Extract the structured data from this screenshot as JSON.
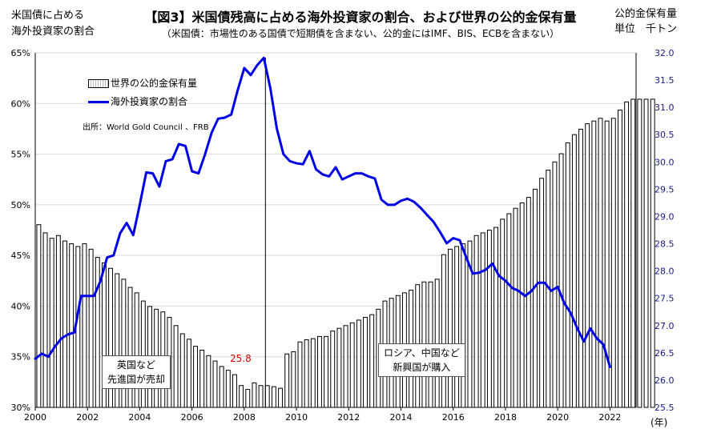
{
  "chart_data": {
    "type": "bar+line",
    "title": "【図3】米国債残高に占める海外投資家の割合、および世界の公的金保有量",
    "subtitle": "（米国債：市場性のある国債で短期債を含まない、公的金にはIMF、BIS、ECBを含まない）",
    "left_axis_title": [
      "米国債に占める",
      "海外投資家の割合"
    ],
    "right_axis_title": [
      "公的金保有量",
      "単位　千トン"
    ],
    "x_unit": "(年)",
    "x_ticks": [
      "2000",
      "2002",
      "2004",
      "2006",
      "2008",
      "2010",
      "2012",
      "2014",
      "2016",
      "2018",
      "2020",
      "2022"
    ],
    "y_left_ticks": [
      "30%",
      "35%",
      "40%",
      "45%",
      "50%",
      "55%",
      "60%",
      "65%"
    ],
    "y_left_range": [
      30,
      65
    ],
    "y_right_ticks": [
      "25.5",
      "26.0",
      "26.5",
      "27.0",
      "27.5",
      "28.0",
      "28.5",
      "29.0",
      "29.5",
      "30.0",
      "30.5",
      "31.0",
      "31.5",
      "32.0"
    ],
    "y_right_range": [
      25.5,
      32.0
    ],
    "x_range": [
      2000,
      2023
    ],
    "source": "出所：World Gold Council 、FRB",
    "legend_bar": "世界の公的金保有量",
    "legend_line": "海外投資家の割合",
    "annotation_left": [
      "英国など",
      "先進国が売却"
    ],
    "annotation_right": [
      "ロシア、中国など",
      "新興国が購入"
    ],
    "peak_label": "25.8",
    "gold_series": {
      "name": "世界の公的金保有量",
      "start": 2000.0,
      "step": 0.25,
      "values": [
        28.85,
        28.7,
        28.6,
        28.65,
        28.55,
        28.5,
        28.45,
        28.5,
        28.4,
        28.25,
        28.15,
        28.05,
        27.95,
        27.85,
        27.7,
        27.6,
        27.45,
        27.35,
        27.3,
        27.25,
        27.15,
        27.0,
        26.85,
        26.75,
        26.62,
        26.55,
        26.45,
        26.35,
        26.25,
        26.18,
        26.1,
        25.9,
        25.83,
        25.95,
        25.9,
        25.9,
        25.88,
        25.85,
        26.48,
        26.52,
        26.7,
        26.74,
        26.76,
        26.8,
        26.8,
        26.9,
        26.95,
        27.0,
        27.05,
        27.1,
        27.15,
        27.2,
        27.3,
        27.45,
        27.5,
        27.55,
        27.6,
        27.65,
        27.75,
        27.8,
        27.8,
        27.85,
        28.3,
        28.4,
        28.45,
        28.5,
        28.55,
        28.65,
        28.7,
        28.75,
        28.8,
        28.95,
        29.05,
        29.15,
        29.25,
        29.35,
        29.5,
        29.7,
        29.85,
        30.0,
        30.15,
        30.35,
        30.5,
        30.6,
        30.7,
        30.75,
        30.8,
        30.75,
        30.8,
        30.95,
        31.1,
        31.15,
        31.15,
        31.15,
        31.15
      ]
    },
    "share_series": {
      "name": "海外投資家の割合",
      "points": [
        [
          2000.0,
          34.8
        ],
        [
          2000.25,
          35.3
        ],
        [
          2000.5,
          35.0
        ],
        [
          2000.75,
          36.0
        ],
        [
          2001.0,
          36.8
        ],
        [
          2001.25,
          37.2
        ],
        [
          2001.5,
          37.4
        ],
        [
          2001.75,
          41.0
        ],
        [
          2002.0,
          41.0
        ],
        [
          2002.25,
          41.0
        ],
        [
          2002.5,
          42.5
        ],
        [
          2002.75,
          44.8
        ],
        [
          2003.0,
          45.0
        ],
        [
          2003.25,
          47.2
        ],
        [
          2003.5,
          48.2
        ],
        [
          2003.75,
          47.0
        ],
        [
          2004.0,
          50.0
        ],
        [
          2004.25,
          53.2
        ],
        [
          2004.5,
          53.1
        ],
        [
          2004.75,
          51.8
        ],
        [
          2005.0,
          54.3
        ],
        [
          2005.25,
          54.5
        ],
        [
          2005.5,
          56.0
        ],
        [
          2005.75,
          55.8
        ],
        [
          2006.0,
          53.3
        ],
        [
          2006.25,
          53.1
        ],
        [
          2006.5,
          55.0
        ],
        [
          2006.75,
          57.1
        ],
        [
          2007.0,
          58.5
        ],
        [
          2007.25,
          58.6
        ],
        [
          2007.5,
          58.9
        ],
        [
          2007.75,
          61.3
        ],
        [
          2008.0,
          63.5
        ],
        [
          2008.25,
          62.8
        ],
        [
          2008.5,
          63.8
        ],
        [
          2008.75,
          64.5
        ],
        [
          2009.0,
          61.5
        ],
        [
          2009.25,
          57.5
        ],
        [
          2009.5,
          55.0
        ],
        [
          2009.75,
          54.3
        ],
        [
          2010.0,
          54.1
        ],
        [
          2010.25,
          54.0
        ],
        [
          2010.5,
          55.3
        ],
        [
          2010.75,
          53.5
        ],
        [
          2011.0,
          53.0
        ],
        [
          2011.25,
          52.8
        ],
        [
          2011.5,
          53.7
        ],
        [
          2011.75,
          52.5
        ],
        [
          2012.0,
          52.8
        ],
        [
          2012.25,
          53.1
        ],
        [
          2012.5,
          53.1
        ],
        [
          2012.75,
          52.8
        ],
        [
          2013.0,
          52.6
        ],
        [
          2013.25,
          50.5
        ],
        [
          2013.5,
          50.0
        ],
        [
          2013.75,
          50.0
        ],
        [
          2014.0,
          50.4
        ],
        [
          2014.25,
          50.6
        ],
        [
          2014.5,
          50.3
        ],
        [
          2014.75,
          49.7
        ],
        [
          2015.0,
          49.0
        ],
        [
          2015.25,
          48.3
        ],
        [
          2015.5,
          47.3
        ],
        [
          2015.75,
          46.2
        ],
        [
          2016.0,
          46.7
        ],
        [
          2016.25,
          46.5
        ],
        [
          2016.5,
          44.8
        ],
        [
          2016.75,
          43.2
        ],
        [
          2017.0,
          43.3
        ],
        [
          2017.25,
          43.6
        ],
        [
          2017.5,
          44.2
        ],
        [
          2017.75,
          43.0
        ],
        [
          2018.0,
          42.5
        ],
        [
          2018.25,
          41.8
        ],
        [
          2018.5,
          41.5
        ],
        [
          2018.75,
          41.0
        ],
        [
          2019.0,
          41.5
        ],
        [
          2019.25,
          42.3
        ],
        [
          2019.5,
          42.3
        ],
        [
          2019.75,
          41.5
        ],
        [
          2020.0,
          41.9
        ],
        [
          2020.25,
          40.3
        ],
        [
          2020.5,
          39.3
        ],
        [
          2020.75,
          37.8
        ],
        [
          2021.0,
          36.5
        ],
        [
          2021.25,
          37.8
        ],
        [
          2021.5,
          36.8
        ],
        [
          2021.75,
          36.2
        ],
        [
          2022.0,
          34.0
        ]
      ]
    }
  }
}
